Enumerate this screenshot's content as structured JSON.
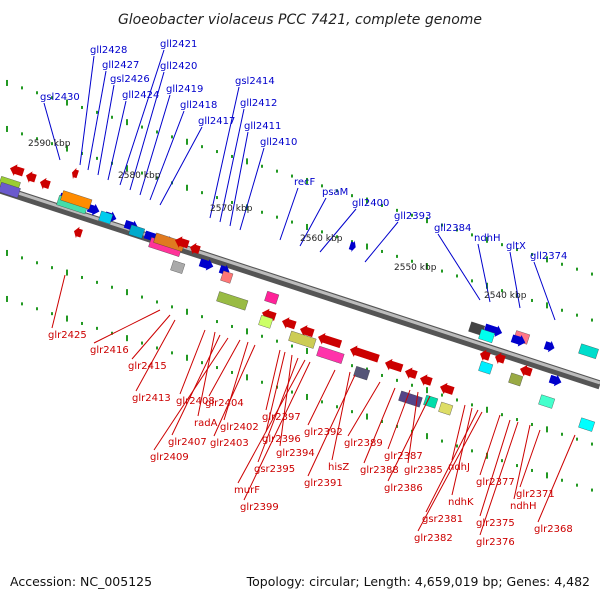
{
  "title": "Gloeobacter violaceus PCC 7421, complete genome",
  "footer": {
    "accession": "Accession: NC_005125",
    "topology": "Topology: circular; Length: 4,659,019 bp; Genes: 4,482"
  },
  "colors": {
    "forward": "#0000cc",
    "reverse": "#cc0000",
    "backbone": "#888888",
    "tick": "#229922"
  },
  "scale_labels": [
    "2590 kbp",
    "2580 kbp",
    "2570 kbp",
    "2560 kbp",
    "2550 kbp",
    "2540 kbp"
  ],
  "top_genes": [
    "gsl2430",
    "gll2428",
    "gll2427",
    "gsl2426",
    "gll2424",
    "gll2421",
    "gll2420",
    "gll2419",
    "gll2418",
    "gll2417",
    "gsl2414",
    "gll2412",
    "gll2411",
    "gll2410",
    "recF",
    "psaM",
    "gll2400",
    "gll2393",
    "gll2384",
    "ndhH",
    "gltX",
    "gll2374"
  ],
  "bottom_genes": [
    "glr2425",
    "glr2416",
    "glr2415",
    "glr2413",
    "glr2408",
    "radA",
    "glr2407",
    "glr2409",
    "glr2404",
    "glr2402",
    "glr2403",
    "glr2397",
    "glr2396",
    "glr2394",
    "gsr2395",
    "murF",
    "glr2399",
    "glr2392",
    "hisZ",
    "glr2391",
    "glr2389",
    "glr2388",
    "glr2387",
    "glr2385",
    "glr2386",
    "ndhJ",
    "ndhK",
    "gsr2381",
    "glr2382",
    "glr2377",
    "glr2375",
    "glr2376",
    "ndhH",
    "glr2371",
    "glr2368"
  ]
}
